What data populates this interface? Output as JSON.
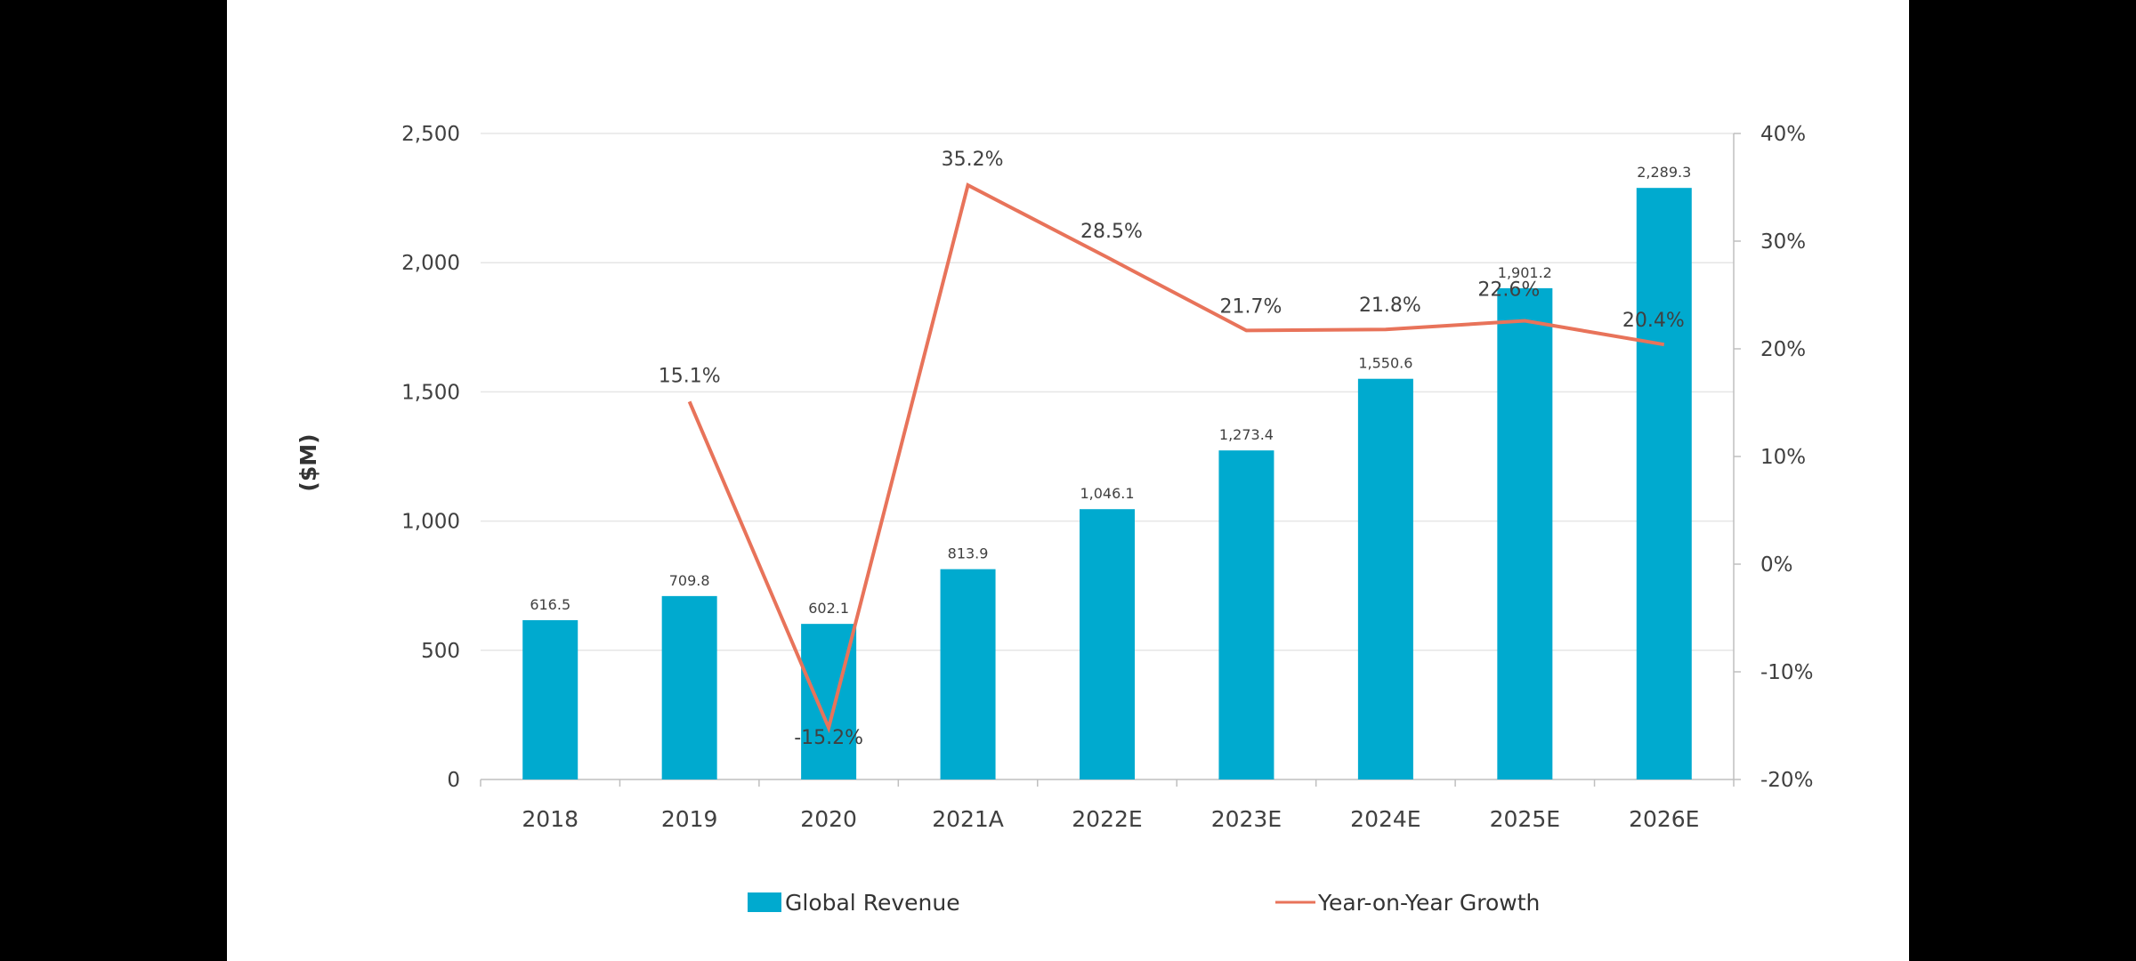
{
  "chart_data": {
    "type": "bar",
    "categories": [
      "2018",
      "2019",
      "2020",
      "2021A",
      "2022E",
      "2023E",
      "2024E",
      "2025E",
      "2026E"
    ],
    "series": [
      {
        "name": "Global Revenue",
        "type": "bar",
        "axis": "left",
        "color": "#00AACF",
        "values": [
          616.5,
          709.8,
          602.1,
          813.9,
          1046.1,
          1273.4,
          1550.6,
          1901.2,
          2289.3
        ],
        "labels": [
          "616.5",
          "709.8",
          "602.1",
          "813.9",
          "1,046.1",
          "1,273.4",
          "1,550.6",
          "1,901.2",
          "2,289.3"
        ]
      },
      {
        "name": "Year-on-Year Growth",
        "type": "line",
        "axis": "right",
        "color": "#E8735A",
        "values": [
          null,
          15.1,
          -15.2,
          35.2,
          28.5,
          21.7,
          21.8,
          22.6,
          20.4
        ],
        "labels": [
          "",
          "15.1%",
          "-15.2%",
          "35.2%",
          "28.5%",
          "21.7%",
          "21.8%",
          "22.6%",
          "20.4%"
        ]
      }
    ],
    "ylabel": "($M)",
    "ylim": [
      0,
      2500
    ],
    "y_ticks": [
      "0",
      "500",
      "1,000",
      "1,500",
      "2,000",
      "2,500"
    ],
    "y2lim": [
      -20,
      40
    ],
    "y2_ticks": [
      "-20%",
      "-10%",
      "0%",
      "10%",
      "20%",
      "30%",
      "40%"
    ],
    "grid": true,
    "legend_position": "bottom"
  }
}
